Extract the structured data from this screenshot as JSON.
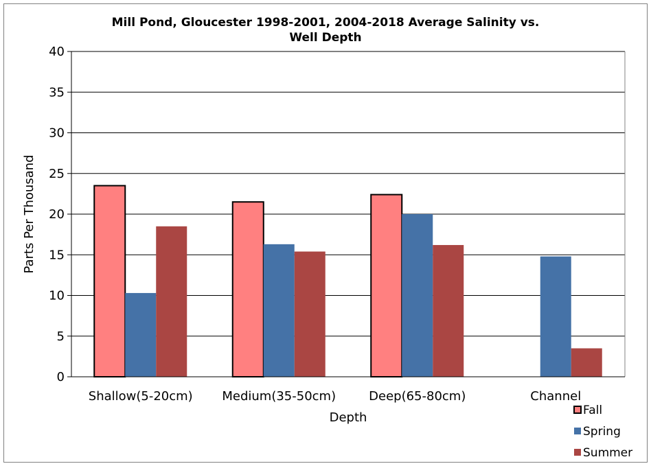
{
  "chart_data": {
    "type": "bar",
    "title_line1": "Mill Pond, Gloucester 1998-2001, 2004-2018 Average Salinity vs.",
    "title_line2": "Well Depth",
    "xlabel": "Depth",
    "ylabel": "Parts Per Thousand",
    "ylim": [
      0,
      40
    ],
    "yticks": [
      "0",
      "5",
      "10",
      "15",
      "20",
      "25",
      "30",
      "35",
      "40"
    ],
    "grid": true,
    "legend_position": "bottom-right",
    "categories": [
      "Shallow(5-20cm)",
      "Medium(35-50cm)",
      "Deep(65-80cm)",
      "Channel"
    ],
    "series": [
      {
        "name": "Fall",
        "color": "#FF8080",
        "outline": "#000000",
        "values": [
          23.5,
          21.5,
          22.4,
          null
        ]
      },
      {
        "name": "Spring",
        "color": "#4572A7",
        "values": [
          10.3,
          16.3,
          20.0,
          14.8
        ]
      },
      {
        "name": "Summer",
        "color": "#AA4643",
        "values": [
          18.5,
          15.4,
          16.2,
          3.5
        ]
      }
    ]
  }
}
